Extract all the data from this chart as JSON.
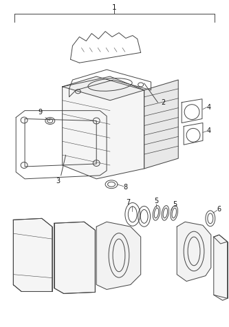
{
  "bg_color": "#ffffff",
  "line_color": "#444444",
  "label_color": "#111111",
  "lw": 0.7,
  "figsize": [
    3.33,
    4.75
  ],
  "dpi": 100
}
